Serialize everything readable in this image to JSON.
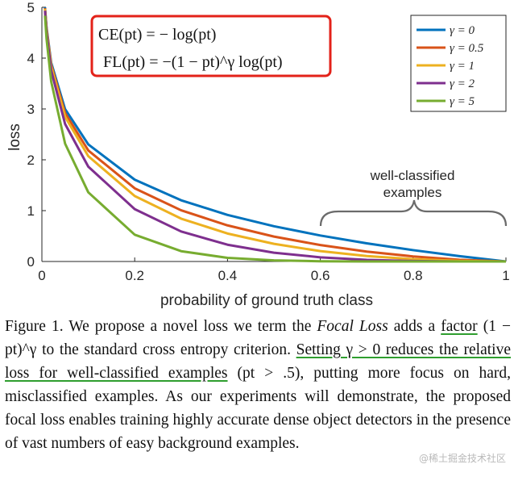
{
  "chart_data": {
    "type": "line",
    "xlabel": "probability of ground truth class",
    "ylabel": "loss",
    "xlim": [
      0,
      1
    ],
    "ylim": [
      0,
      5
    ],
    "xticks": [
      "0",
      "0.2",
      "0.4",
      "0.6",
      "0.8",
      "1"
    ],
    "yticks": [
      "0",
      "1",
      "2",
      "3",
      "4",
      "5"
    ],
    "grid": false,
    "legend_position": "top-right",
    "x": [
      0.0067,
      0.01,
      0.02,
      0.05,
      0.1,
      0.2,
      0.3,
      0.4,
      0.5,
      0.6,
      0.7,
      0.8,
      0.9,
      1.0
    ],
    "series": [
      {
        "name": "γ = 0",
        "color": "#0072bd",
        "values": [
          5.0,
          4.605,
          3.912,
          2.996,
          2.303,
          1.609,
          1.204,
          0.916,
          0.693,
          0.511,
          0.357,
          0.223,
          0.105,
          0.0
        ]
      },
      {
        "name": "γ = 0.5",
        "color": "#d95319",
        "values": [
          4.983,
          4.582,
          3.873,
          2.92,
          2.184,
          1.439,
          1.007,
          0.71,
          0.49,
          0.323,
          0.195,
          0.1,
          0.033,
          0.0
        ]
      },
      {
        "name": "γ = 1",
        "color": "#edb120",
        "values": [
          4.966,
          4.559,
          3.834,
          2.846,
          2.072,
          1.288,
          0.843,
          0.55,
          0.347,
          0.204,
          0.107,
          0.045,
          0.011,
          0.0
        ]
      },
      {
        "name": "γ = 2",
        "color": "#7e2f8e",
        "values": [
          4.933,
          4.513,
          3.757,
          2.704,
          1.865,
          1.03,
          0.59,
          0.33,
          0.173,
          0.082,
          0.032,
          0.009,
          0.001,
          0.0
        ]
      },
      {
        "name": "γ = 5",
        "color": "#77ac30",
        "values": [
          4.834,
          4.381,
          3.54,
          2.318,
          1.36,
          0.527,
          0.203,
          0.071,
          0.022,
          0.005,
          0.001,
          0.0,
          0.0,
          0.0
        ]
      }
    ],
    "annotations": {
      "formula_ce": "CE(pt) = − log(pt)",
      "formula_fl": "FL(pt) = −(1 − pt)^γ log(pt)",
      "bracket_label_line1": "well-classified",
      "bracket_label_line2": "examples"
    }
  },
  "caption": {
    "part1": "Figure 1. We propose a novel loss we term the ",
    "focal_loss": "Focal Loss",
    "part2": " adds a ",
    "factor_word": "factor",
    "factor_expr": " (1 − pt)^γ",
    "part3": " to the standard cross entropy criterion. ",
    "underlined_sentence": "Setting γ > 0 reduces the relative loss for well-classified examples",
    "part4": " (pt > .5), putting more focus on hard, misclassified examples. As our experiments will demonstrate, the proposed focal loss enables training highly accurate dense object detectors in the presence of vast numbers of easy background examples."
  },
  "watermark": "@稀土掘金技术社区"
}
